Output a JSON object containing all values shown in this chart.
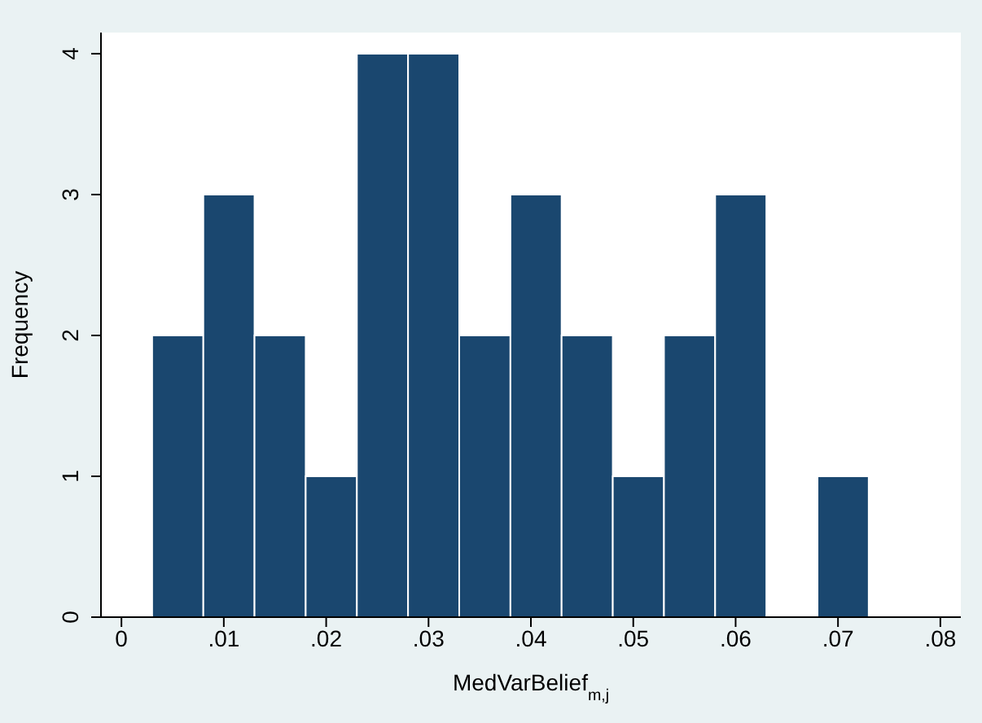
{
  "chart_data": {
    "type": "histogram",
    "xlabel": "MedVarBelief$_{m,j}$",
    "ylabel": "Frequency",
    "bins": [
      0.003,
      0.008,
      0.013,
      0.018,
      0.023,
      0.028,
      0.033,
      0.038,
      0.043,
      0.048,
      0.053,
      0.058,
      0.063,
      0.068,
      0.073
    ],
    "values": [
      2,
      3,
      2,
      1,
      4,
      4,
      2,
      3,
      2,
      1,
      2,
      3,
      0,
      1
    ],
    "color": "#1a476f",
    "xlim": [
      -0.002,
      0.082
    ],
    "xticks": [
      0,
      {
        "value": 0.01,
        "label": ".01"
      },
      {
        "value": 0.02,
        "label": ".02"
      },
      {
        "value": 0.03,
        "label": ".03"
      },
      {
        "value": 0.04,
        "label": ".04"
      },
      {
        "value": 0.05,
        "label": ".05"
      },
      {
        "value": 0.06,
        "label": ".06"
      },
      {
        "value": 0.07,
        "label": ".07"
      },
      {
        "value": 0.08,
        "label": ".08"
      }
    ],
    "ylim": [
      0,
      4.15
    ],
    "yticks": [
      0,
      1,
      2,
      3,
      4
    ],
    "grid": false
  }
}
